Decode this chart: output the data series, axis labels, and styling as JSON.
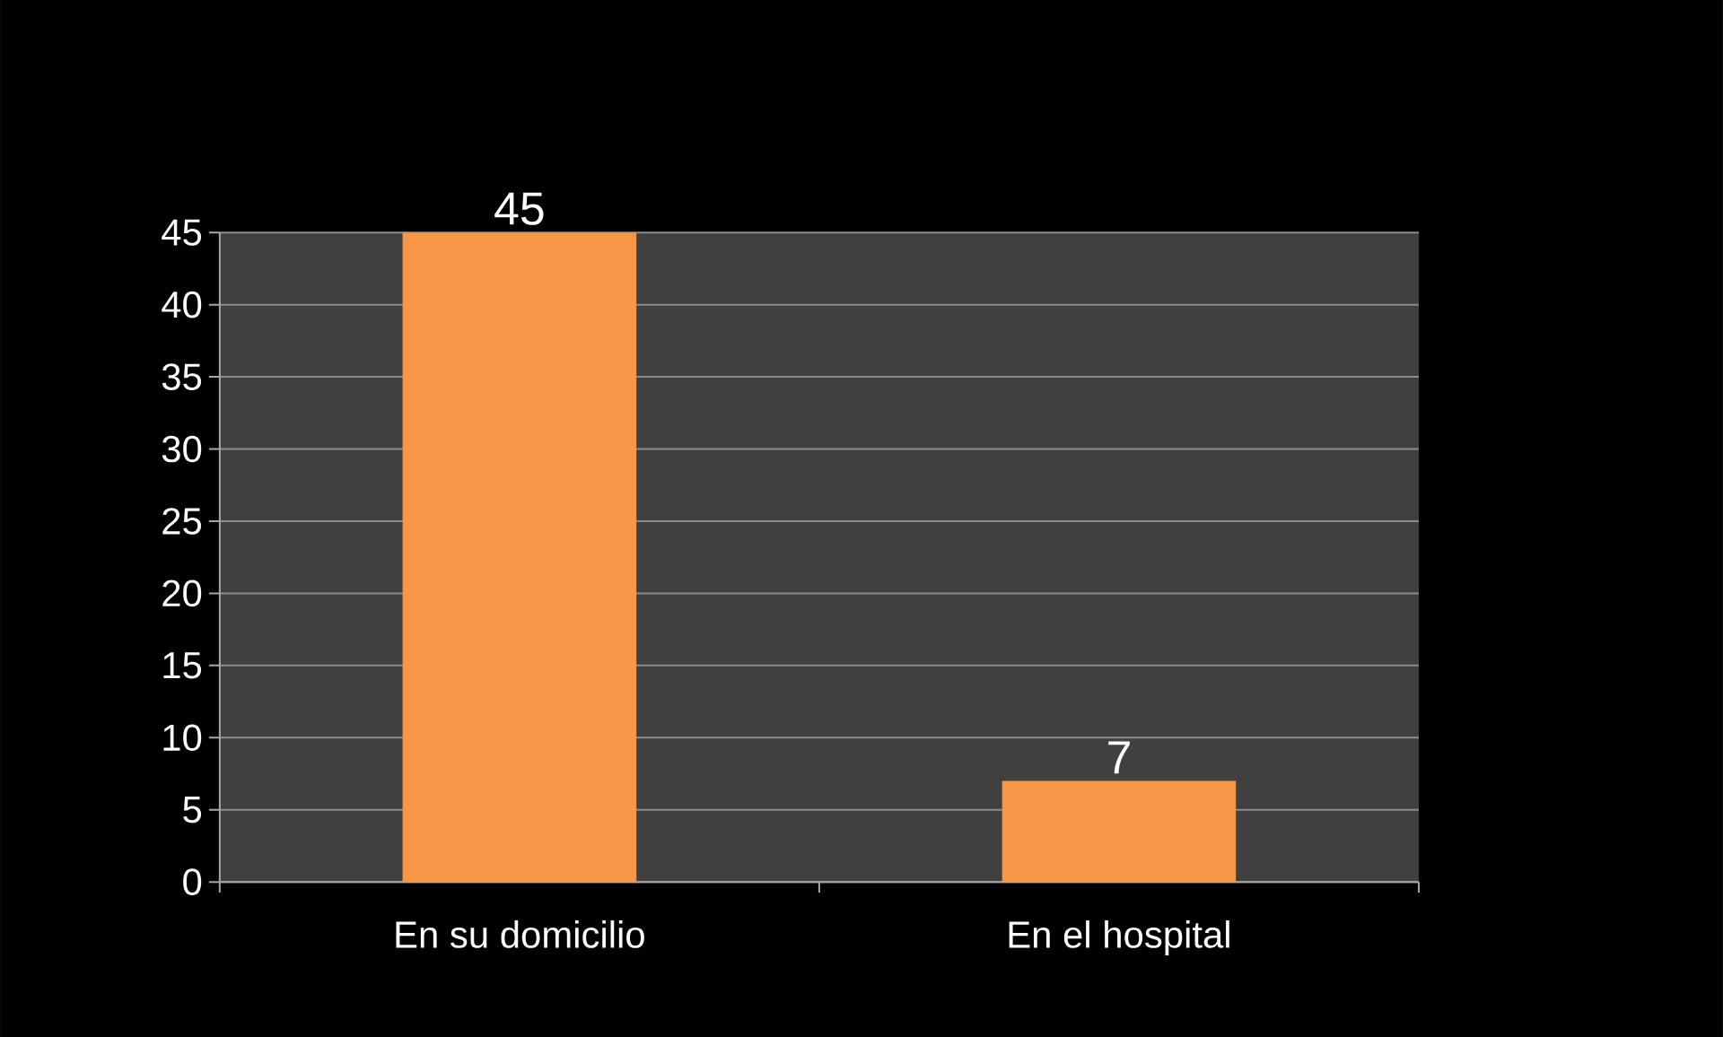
{
  "chart_data": {
    "type": "bar",
    "categories": [
      "En su domicilio",
      "En el hospital"
    ],
    "values": [
      45,
      7
    ],
    "color": "#f79646",
    "ylim": [
      0,
      45
    ],
    "yticks": [
      0,
      5,
      10,
      15,
      20,
      25,
      30,
      35,
      40,
      45
    ],
    "grid": "y",
    "data_labels": true
  }
}
